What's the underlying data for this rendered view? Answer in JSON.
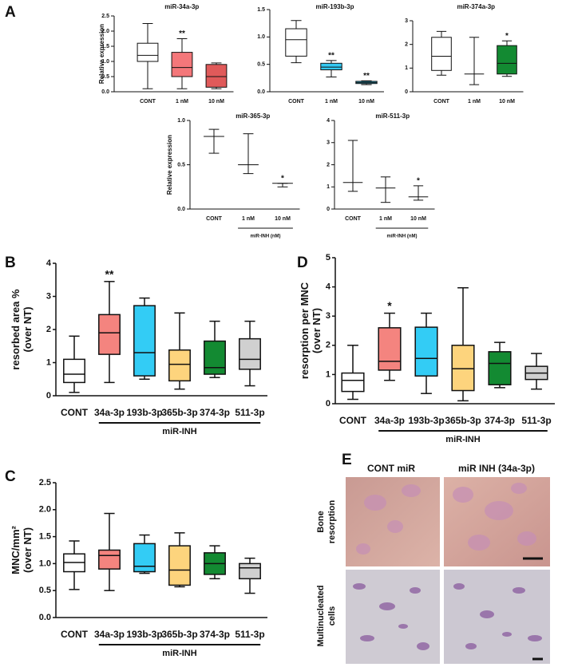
{
  "panels": [
    "A",
    "B",
    "C",
    "D",
    "E"
  ],
  "chart_data": [
    {
      "type": "box",
      "title": "miR-34a-3p",
      "y_label": [
        "Relative expression"
      ],
      "categories": [
        "CONT",
        "1 nM",
        "10 nM"
      ],
      "ylim": [
        0,
        2.5
      ],
      "yticks": [
        {
          "value": 0,
          "label": "0.0"
        },
        0.5,
        {
          "value": 1,
          "label": "1.0"
        },
        1.5,
        {
          "value": 2,
          "label": "2.0"
        },
        2.5
      ],
      "boxes": [
        {
          "min": 0.1,
          "q1": 1.0,
          "median": 1.2,
          "q3": 1.6,
          "max": 2.25,
          "color": "#ffffff"
        },
        {
          "min": 0.1,
          "q1": 0.5,
          "median": 0.8,
          "q3": 1.3,
          "max": 1.75,
          "color": "#f4777a"
        },
        {
          "min": 0.1,
          "q1": 0.15,
          "median": 0.5,
          "q3": 0.9,
          "max": 0.95,
          "color": "#e05a5a"
        }
      ],
      "annotations": [
        null,
        "**",
        null
      ]
    },
    {
      "type": "box",
      "title": "miR-193b-3p",
      "categories": [
        "CONT",
        "1 nM",
        "10 nM"
      ],
      "ylim": [
        0,
        1.5
      ],
      "yticks": [
        {
          "value": 0,
          "label": "0.0"
        },
        0.5,
        {
          "value": 1,
          "label": "1.0"
        },
        1.5
      ],
      "boxes": [
        {
          "min": 0.53,
          "q1": 0.65,
          "median": 0.95,
          "q3": 1.15,
          "max": 1.3,
          "color": "#ffffff"
        },
        {
          "min": 0.27,
          "q1": 0.4,
          "median": 0.45,
          "q3": 0.52,
          "max": 0.57,
          "color": "#33c8f2"
        },
        {
          "min": 0.13,
          "q1": 0.15,
          "median": 0.17,
          "q3": 0.19,
          "max": 0.2,
          "color": "#33c8f2"
        }
      ],
      "annotations": [
        null,
        "**",
        "**"
      ]
    },
    {
      "type": "box",
      "title": "miR-374a-3p",
      "categories": [
        "CONT",
        "1 nM",
        "10 nM"
      ],
      "ylim": [
        0,
        3
      ],
      "yticks": [
        0,
        1,
        2,
        3
      ],
      "boxes": [
        {
          "min": 0.7,
          "q1": 0.9,
          "median": 1.5,
          "q3": 2.3,
          "max": 2.55,
          "color": "#ffffff"
        },
        {
          "min": 0.3,
          "q1": 0.75,
          "median": 0.75,
          "q3": 0.75,
          "max": 2.3,
          "color": "#ffffff"
        },
        {
          "min": 0.65,
          "q1": 0.75,
          "median": 1.2,
          "q3": 1.95,
          "max": 2.15,
          "color": "#138a32"
        }
      ],
      "annotations": [
        null,
        null,
        "*"
      ]
    },
    {
      "type": "box",
      "title": "miR-365-3p",
      "y_label": [
        "Relative expression"
      ],
      "categories": [
        "CONT",
        "1 nM",
        "10 nM"
      ],
      "group_label": "miR-INH (nM)",
      "ylim": [
        0,
        1
      ],
      "yticks": [
        {
          "value": 0,
          "label": "0.0"
        },
        0.5,
        {
          "value": 1,
          "label": "1.0"
        }
      ],
      "boxes": [
        {
          "min": 0.63,
          "q1": 0.82,
          "median": 0.82,
          "q3": 0.82,
          "max": 0.9,
          "color": "#ffffff"
        },
        {
          "min": 0.4,
          "q1": 0.5,
          "median": 0.5,
          "q3": 0.5,
          "max": 0.85,
          "color": "#ffffff"
        },
        {
          "min": 0.25,
          "q1": 0.29,
          "median": 0.29,
          "q3": 0.29,
          "max": 0.29,
          "color": "#ffffff"
        }
      ],
      "annotations": [
        null,
        null,
        "*"
      ]
    },
    {
      "type": "box",
      "title": "miR-511-3p",
      "categories": [
        "CONT",
        "1 nM",
        "10 nM"
      ],
      "group_label": "miR-INH (nM)",
      "ylim": [
        0,
        4
      ],
      "yticks": [
        0,
        1,
        2,
        3,
        4
      ],
      "boxes": [
        {
          "min": 0.8,
          "q1": 1.2,
          "median": 1.2,
          "q3": 1.2,
          "max": 3.1,
          "color": "#ffffff"
        },
        {
          "min": 0.3,
          "q1": 0.95,
          "median": 0.95,
          "q3": 0.95,
          "max": 1.45,
          "color": "#ffffff"
        },
        {
          "min": 0.4,
          "q1": 0.55,
          "median": 0.55,
          "q3": 0.55,
          "max": 1.05,
          "color": "#ffffff"
        }
      ],
      "annotations": [
        null,
        null,
        "*"
      ]
    },
    {
      "type": "box",
      "y_label": [
        "resorbed area %",
        "(over NT)"
      ],
      "categories": [
        "CONT",
        "34a-3p",
        "193b-3p",
        "365b-3p",
        "374-3p",
        "511-3p"
      ],
      "group_label": "miR-INH",
      "ylim": [
        0,
        4
      ],
      "yticks": [
        0,
        1,
        2,
        3,
        4
      ],
      "boxes": [
        {
          "min": 0.1,
          "q1": 0.4,
          "median": 0.65,
          "q3": 1.1,
          "max": 1.8,
          "color": "#ffffff"
        },
        {
          "min": 0.4,
          "q1": 1.25,
          "median": 1.9,
          "q3": 2.45,
          "max": 3.45,
          "color": "#f4847f"
        },
        {
          "min": 0.5,
          "q1": 0.6,
          "median": 1.3,
          "q3": 2.72,
          "max": 2.95,
          "color": "#33ccf5"
        },
        {
          "min": 0.2,
          "q1": 0.45,
          "median": 0.95,
          "q3": 1.38,
          "max": 2.5,
          "color": "#fdd47d"
        },
        {
          "min": 0.55,
          "q1": 0.65,
          "median": 0.85,
          "q3": 1.65,
          "max": 2.25,
          "color": "#138a32"
        },
        {
          "min": 0.3,
          "q1": 0.8,
          "median": 1.1,
          "q3": 1.72,
          "max": 2.25,
          "color": "#d0d0d0"
        }
      ],
      "annotations": [
        null,
        "**",
        null,
        null,
        null,
        null
      ]
    },
    {
      "type": "box",
      "y_label": [
        "MNC/mm²",
        "(over NT)"
      ],
      "categories": [
        "CONT",
        "34a-3p",
        "193b-3p",
        "365b-3p",
        "374-3p",
        "511-3p"
      ],
      "group_label": "miR-INH",
      "ylim": [
        0,
        2.5
      ],
      "yticks": [
        {
          "value": 0,
          "label": "0.0"
        },
        0.5,
        {
          "value": 1,
          "label": "1.0"
        },
        1.5,
        {
          "value": 2,
          "label": "2.0"
        },
        2.5
      ],
      "boxes": [
        {
          "min": 0.52,
          "q1": 0.85,
          "median": 1.02,
          "q3": 1.18,
          "max": 1.42,
          "color": "#ffffff"
        },
        {
          "min": 0.5,
          "q1": 0.9,
          "median": 1.15,
          "q3": 1.25,
          "max": 1.93,
          "color": "#f4847f"
        },
        {
          "min": 0.82,
          "q1": 0.85,
          "median": 0.95,
          "q3": 1.37,
          "max": 1.53,
          "color": "#33ccf5"
        },
        {
          "min": 0.57,
          "q1": 0.6,
          "median": 0.88,
          "q3": 1.33,
          "max": 1.57,
          "color": "#fdd47d"
        },
        {
          "min": 0.72,
          "q1": 0.8,
          "median": 1.0,
          "q3": 1.2,
          "max": 1.33,
          "color": "#138a32"
        },
        {
          "min": 0.45,
          "q1": 0.72,
          "median": 0.92,
          "q3": 1.0,
          "max": 1.1,
          "color": "#d0d0d0"
        }
      ],
      "annotations": [
        null,
        null,
        null,
        null,
        null,
        null
      ]
    },
    {
      "type": "box",
      "y_label": [
        "resorption per MNC",
        "(over NT)"
      ],
      "categories": [
        "CONT",
        "34a-3p",
        "193b-3p",
        "365b-3p",
        "374-3p",
        "511-3p"
      ],
      "group_label": "miR-INH",
      "ylim": [
        0,
        5
      ],
      "yticks": [
        0,
        1,
        2,
        3,
        4,
        5
      ],
      "boxes": [
        {
          "min": 0.15,
          "q1": 0.42,
          "median": 0.8,
          "q3": 1.05,
          "max": 2.0,
          "color": "#ffffff"
        },
        {
          "min": 0.8,
          "q1": 1.15,
          "median": 1.45,
          "q3": 2.6,
          "max": 3.1,
          "color": "#f4847f"
        },
        {
          "min": 0.35,
          "q1": 0.95,
          "median": 1.55,
          "q3": 2.62,
          "max": 3.1,
          "color": "#33ccf5"
        },
        {
          "min": 0.1,
          "q1": 0.45,
          "median": 1.2,
          "q3": 2.0,
          "max": 3.97,
          "color": "#fdd47d"
        },
        {
          "min": 0.55,
          "q1": 0.65,
          "median": 1.38,
          "q3": 1.78,
          "max": 2.1,
          "color": "#138a32"
        },
        {
          "min": 0.5,
          "q1": 0.83,
          "median": 1.05,
          "q3": 1.28,
          "max": 1.72,
          "color": "#d0d0d0"
        }
      ],
      "annotations": [
        null,
        "*",
        null,
        null,
        null,
        null
      ]
    }
  ],
  "panel_e": {
    "columns": [
      "CONT miR",
      "miR INH (34a-3p)"
    ],
    "rows": [
      [
        "Bone",
        "resorption"
      ],
      [
        "Multinucleated",
        "cells"
      ]
    ]
  }
}
